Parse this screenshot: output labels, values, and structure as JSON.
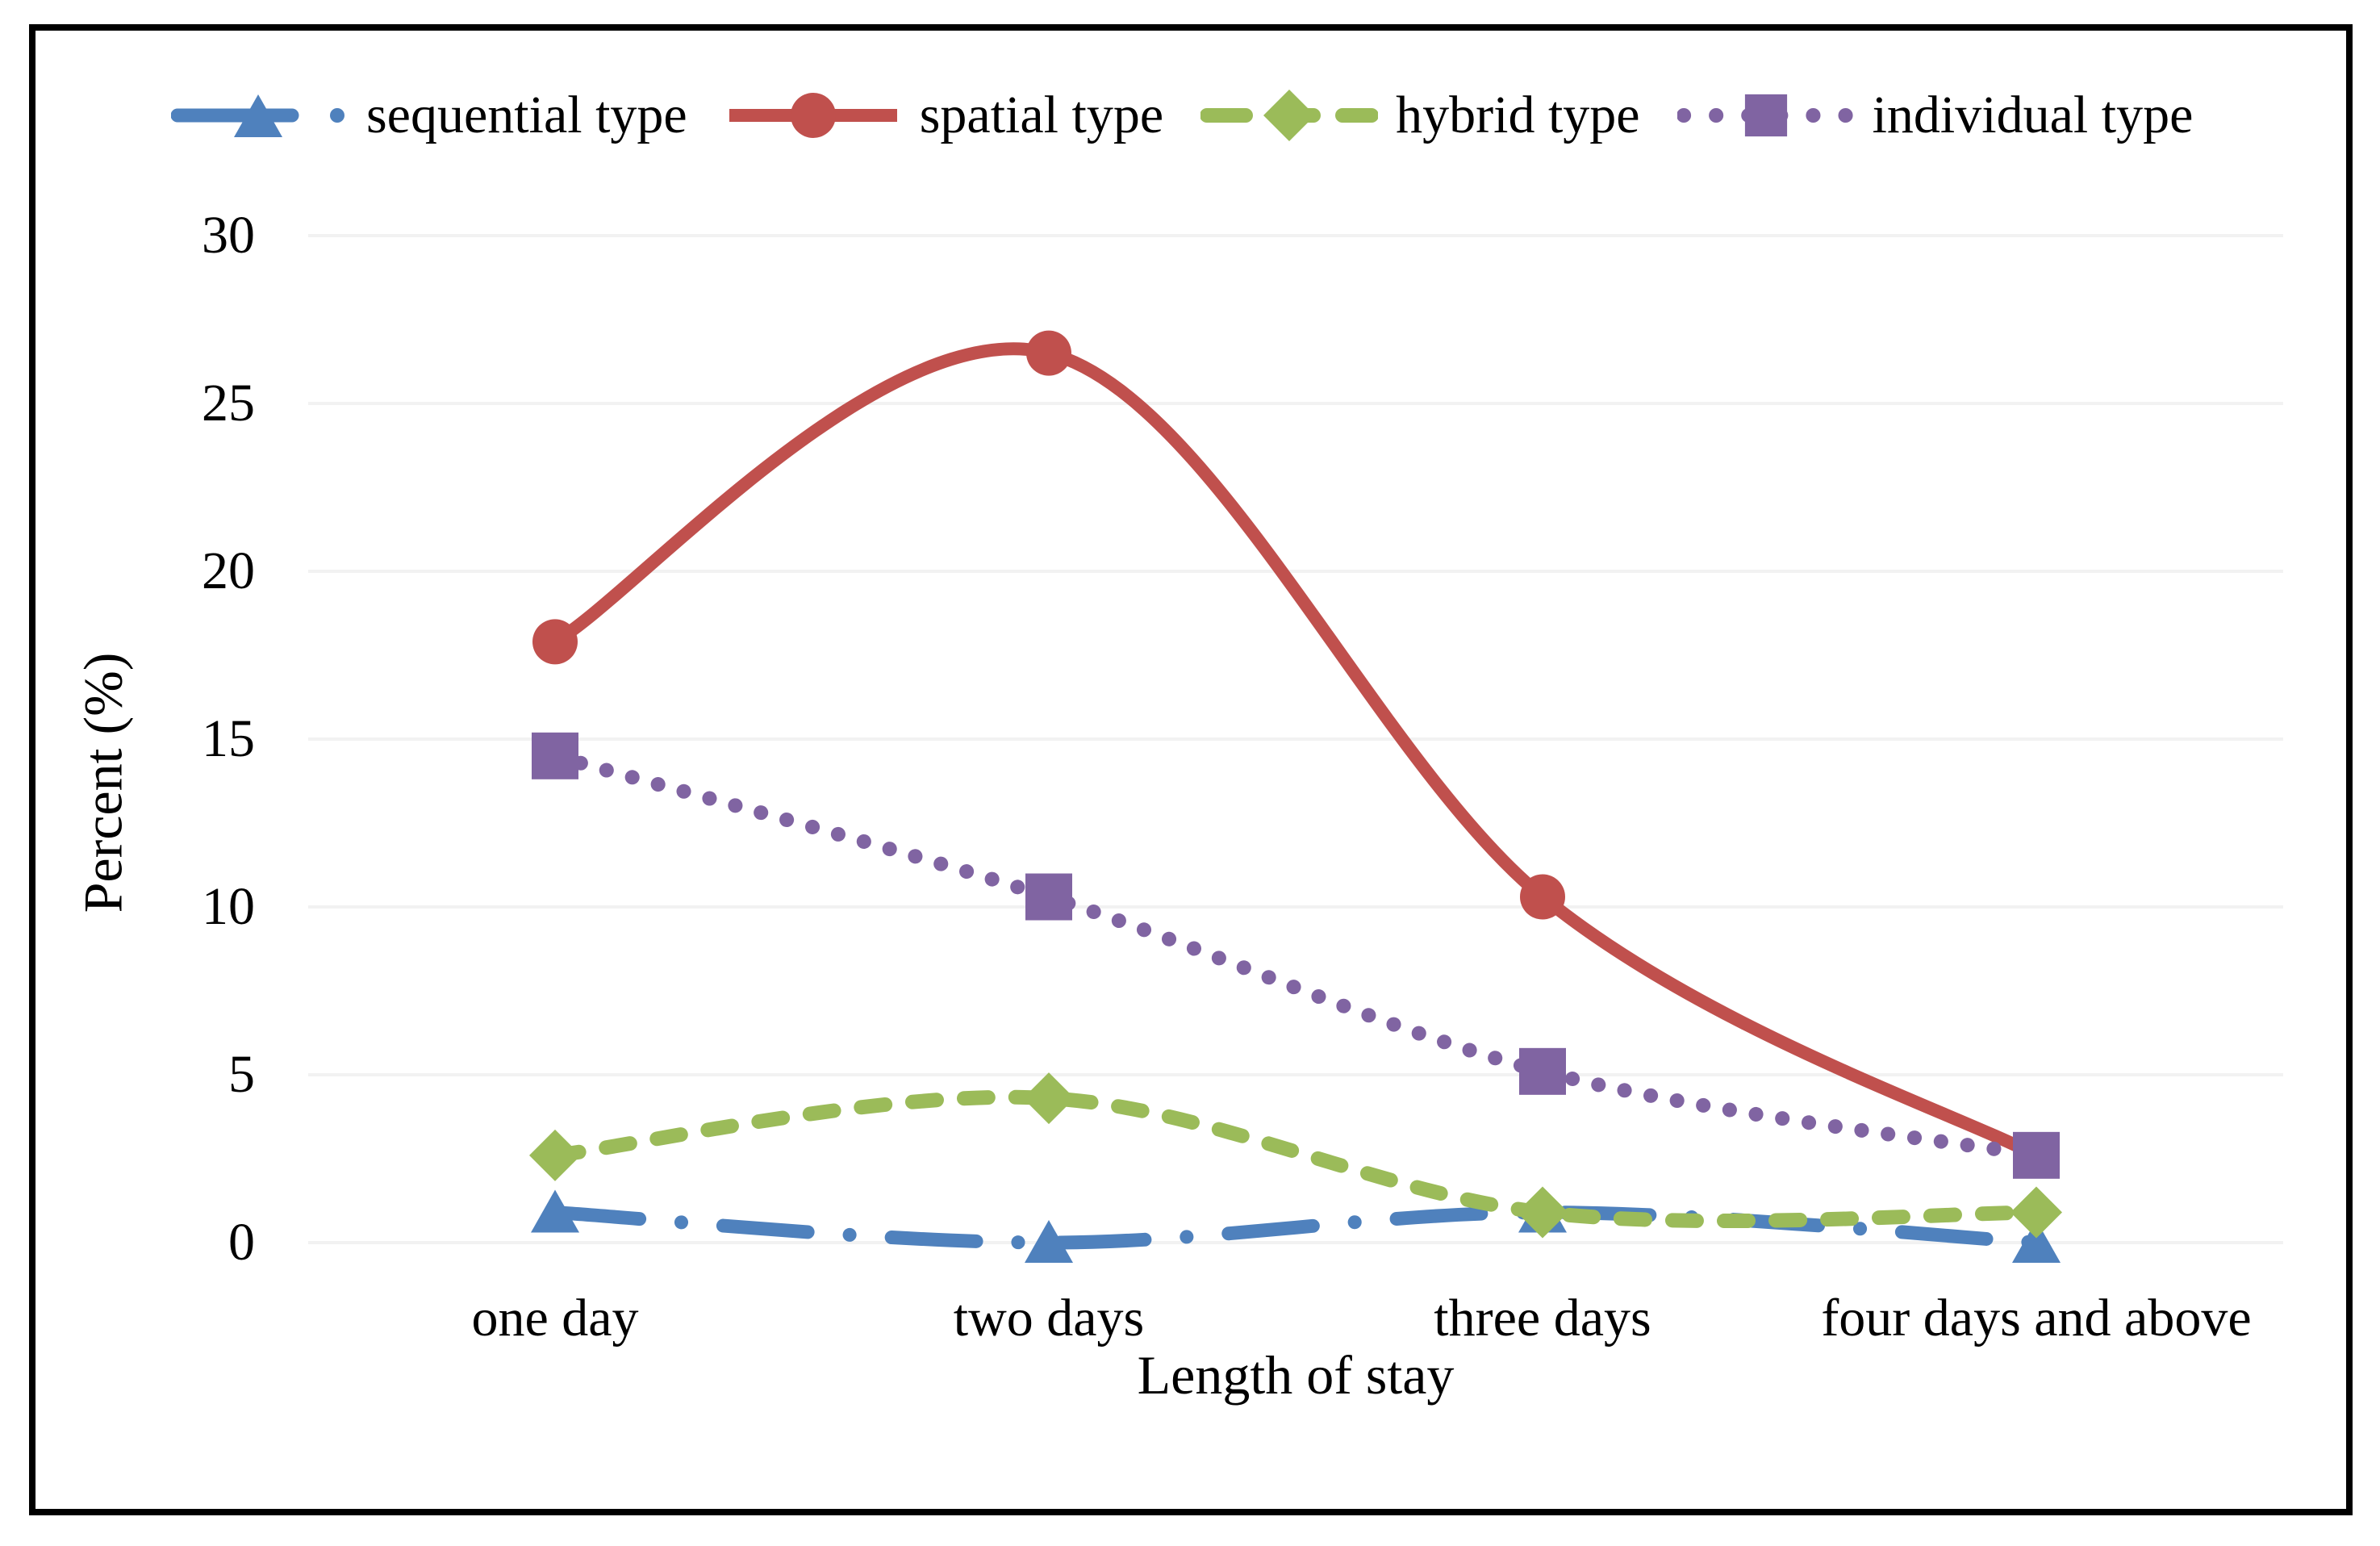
{
  "chart_data": {
    "type": "line",
    "xlabel": "Length of stay",
    "ylabel": "Percent (%)",
    "categories": [
      "one day",
      "two days",
      "three days",
      "four days and above"
    ],
    "yticks": [
      30,
      25,
      20,
      15,
      10,
      5,
      0
    ],
    "ylim": [
      0,
      30
    ],
    "grid": true,
    "legend_position": "top",
    "series": [
      {
        "name": "sequential type",
        "color": "#4F81BD",
        "marker": "triangle",
        "dash": "dashdot",
        "values": [
          0.9,
          0,
          0.9,
          0
        ]
      },
      {
        "name": "spatial type",
        "color": "#C0504D",
        "marker": "circle",
        "dash": "solid",
        "values": [
          17.9,
          26.5,
          10.3,
          2.6
        ]
      },
      {
        "name": "hybrid type",
        "color": "#9BBB59",
        "marker": "diamond",
        "dash": "dashed",
        "values": [
          2.6,
          4.3,
          0.9,
          0.9
        ]
      },
      {
        "name": "individual type",
        "color": "#8064A2",
        "marker": "square",
        "dash": "dotted",
        "values": [
          14.5,
          10.3,
          5.1,
          2.6
        ]
      }
    ]
  },
  "colors": {
    "background": "#ffffff",
    "border": "#000000",
    "gridline": "#f2f2f2",
    "text": "#000000"
  }
}
